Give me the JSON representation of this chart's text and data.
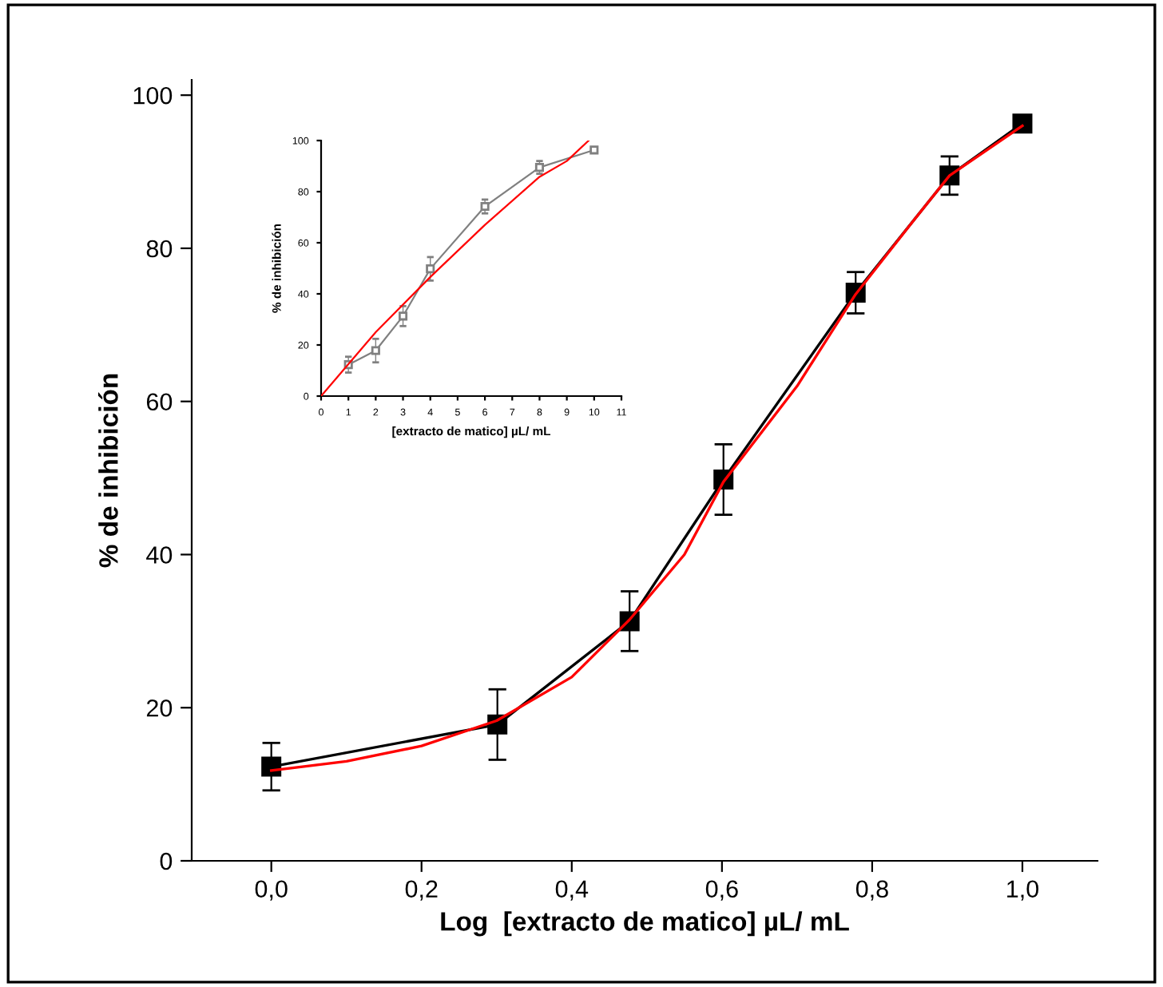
{
  "chart_data": [
    {
      "type": "line",
      "xlabel": "Log  [extracto de matico] µL/ mL",
      "ylabel": "% de inhibición",
      "xlim": [
        -0.106,
        1.1
      ],
      "ylim": [
        0,
        102
      ],
      "xticks": [
        {
          "value": 0,
          "label": "0,0"
        },
        {
          "value": 0.2,
          "label": "0,2"
        },
        {
          "value": 0.4,
          "label": "0,4"
        },
        {
          "value": 0.6,
          "label": "0,6"
        },
        {
          "value": 0.8,
          "label": "0,8"
        },
        {
          "value": 1.0,
          "label": "1,0"
        }
      ],
      "yticks": [
        0,
        20,
        40,
        60,
        80,
        100
      ],
      "series": [
        {
          "color": "#000000",
          "marker": "square",
          "x": [
            0,
            0.301,
            0.477,
            0.602,
            0.778,
            0.903,
            1.0
          ],
          "values": [
            12.3,
            17.8,
            31.3,
            49.8,
            74.2,
            89.5,
            96.3
          ],
          "errors": [
            3.1,
            4.6,
            3.9,
            4.6,
            2.7,
            2.5,
            1.0
          ]
        },
        {
          "color": "#ff0000",
          "marker": "none",
          "x": [
            0,
            0.1,
            0.2,
            0.3,
            0.4,
            0.477,
            0.55,
            0.602,
            0.7,
            0.778,
            0.85,
            0.903,
            1.0
          ],
          "values": [
            11.8,
            13,
            15,
            18.3,
            24,
            31.5,
            40,
            49.5,
            62,
            74,
            83,
            89.5,
            96
          ]
        }
      ]
    },
    {
      "type": "line",
      "xlabel": "[extracto de matico] µL/ mL",
      "ylabel": "% de inhibición",
      "xlim": [
        0,
        11
      ],
      "ylim": [
        0,
        100
      ],
      "xticks": [
        0,
        1,
        2,
        3,
        4,
        5,
        6,
        7,
        8,
        9,
        10,
        11
      ],
      "yticks": [
        0,
        20,
        40,
        60,
        80,
        100
      ],
      "series": [
        {
          "color": "#808080",
          "marker": "square",
          "x": [
            1,
            2,
            3,
            4,
            6,
            8,
            10
          ],
          "values": [
            12.3,
            17.8,
            31.3,
            49.8,
            74.2,
            89.5,
            96.3
          ],
          "errors": [
            3.1,
            4.6,
            3.9,
            4.6,
            2.7,
            2.5,
            1.0
          ]
        },
        {
          "color": "#ff0000",
          "marker": "none",
          "x": [
            0,
            2,
            4,
            6,
            8,
            9,
            9.8
          ],
          "values": [
            0,
            25,
            46.6,
            67,
            85.8,
            92,
            100
          ]
        }
      ]
    }
  ]
}
